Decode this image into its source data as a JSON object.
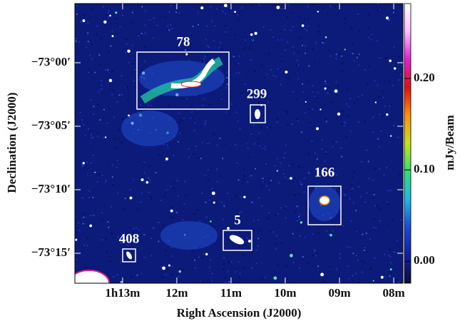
{
  "chart_data": {
    "type": "image",
    "xlabel": "Right Ascension (J2000)",
    "ylabel": "Declination (J2000)",
    "xlim": [
      73.88,
      67.83
    ],
    "xticks": [
      {
        "value": 73,
        "label": "1h13m"
      },
      {
        "value": 72,
        "label": "12m"
      },
      {
        "value": 71,
        "label": "11m"
      },
      {
        "value": 70,
        "label": "10m"
      },
      {
        "value": 69,
        "label": "09m"
      },
      {
        "value": 68,
        "label": "08m"
      }
    ],
    "ylim": [
      -4397.36,
      -4375.34
    ],
    "yticks": [
      {
        "value": -4380,
        "label": "−73°00′"
      },
      {
        "value": -4385,
        "label": "−73°05′"
      },
      {
        "value": -4390,
        "label": "−73°10′"
      },
      {
        "value": -4395,
        "label": "−73°15′"
      }
    ],
    "colorbar": {
      "label": "mJy/Beam",
      "clim": [
        -0.024,
        0.282
      ],
      "ticks": [
        {
          "value": 0,
          "label": "0.00"
        },
        {
          "value": 0.1,
          "label": "0.10"
        },
        {
          "value": 0.2,
          "label": "0.20"
        }
      ],
      "colormap": [
        "#0a0f3a",
        "#1020a0",
        "#1a4ad8",
        "#20b8e8",
        "#30e070",
        "#c8e020",
        "#ff9010",
        "#e01010",
        "#e020d0",
        "#ffc0ff",
        "#ffffff"
      ]
    },
    "annotations": [
      "78",
      "299",
      "166",
      "5",
      "408"
    ]
  }
}
